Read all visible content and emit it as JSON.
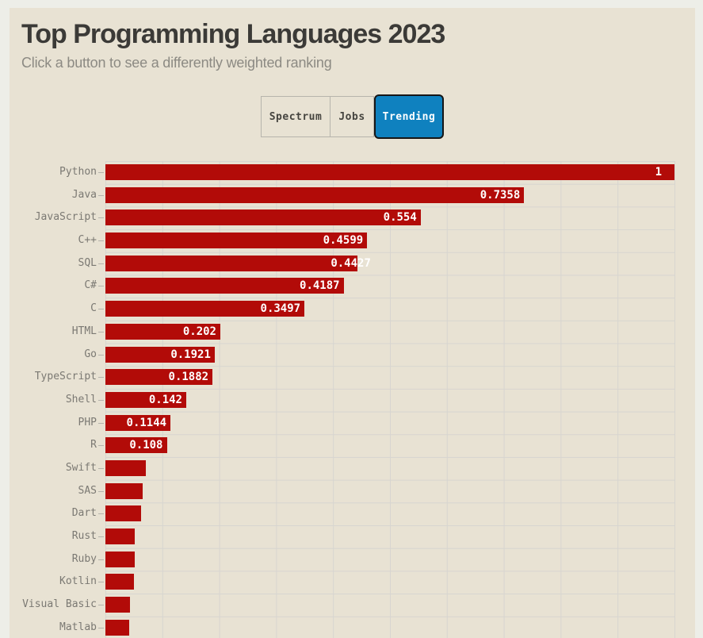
{
  "header": {
    "title": "Top Programming Languages 2023",
    "subtitle": "Click a button to see a differently weighted ranking"
  },
  "buttons": [
    {
      "label": "Spectrum",
      "selected": false
    },
    {
      "label": "Jobs",
      "selected": false
    },
    {
      "label": "Trending",
      "selected": true
    }
  ],
  "colors": {
    "outer_bg": "#edeee8",
    "content_bg": "#e8e2d3",
    "bar_red": "#b20b08",
    "accent_blue": "#0f81bf",
    "title_color": "#3b3a37",
    "subtitle_color": "#8c8a83",
    "axis_label_color": "#7b7973",
    "grid_color": "#d7d5d0",
    "tick_color": "#b5b3ac",
    "button_text_color": "#45443f",
    "button_border_color": "#b6b4ac",
    "selected_button_border": "#161616",
    "bar_value_color": "#ffffff"
  },
  "chart_data": {
    "type": "bar",
    "orientation": "horizontal",
    "title": "Top Programming Languages 2023",
    "selected_weighting": "Trending",
    "categories": [
      "Python",
      "Java",
      "JavaScript",
      "C++",
      "SQL",
      "C#",
      "C",
      "HTML",
      "Go",
      "TypeScript",
      "Shell",
      "PHP",
      "R",
      "Swift",
      "SAS",
      "Dart",
      "Rust",
      "Ruby",
      "Kotlin",
      "Visual Basic",
      "Matlab"
    ],
    "values": [
      1,
      0.7358,
      0.554,
      0.4599,
      0.4427,
      0.4187,
      0.3497,
      0.202,
      0.1921,
      0.1882,
      0.142,
      0.1144,
      0.108,
      0.071,
      0.066,
      0.062,
      0.052,
      0.051,
      0.05,
      0.043,
      0.042
    ],
    "bar_labels": [
      "1",
      "0.7358",
      "0.554",
      "0.4599",
      "0.4427",
      "0.4187",
      "0.3497",
      "0.202",
      "0.1921",
      "0.1882",
      "0.142",
      "0.1144",
      "0.108",
      "",
      "",
      "",
      "",
      "",
      "",
      "",
      ""
    ],
    "xlabel": "",
    "ylabel": "",
    "xlim": [
      0,
      1
    ],
    "grid": true,
    "gridline_interval": 0.1,
    "legend": "none"
  }
}
